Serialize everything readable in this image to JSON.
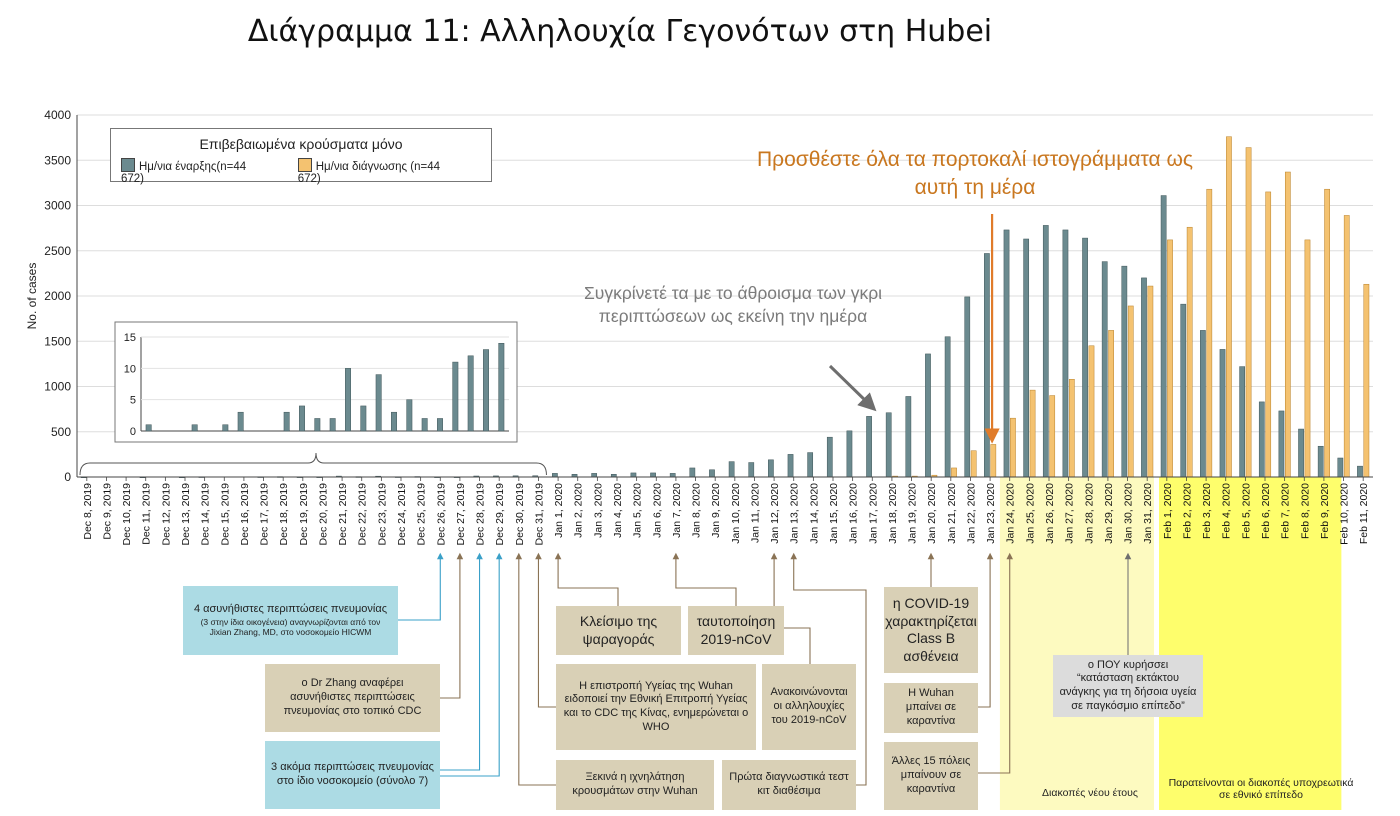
{
  "title": "Διάγραμμα 11: Αλληλουχία Γεγονότων στη Hubei",
  "legend": {
    "title": "Επιβεβαιωμένα κρούσματα μόνο",
    "series": [
      {
        "label": "Ημ/νια έναρξης(n=44 672)",
        "color": "#6b8a8f"
      },
      {
        "label": "Ημ/νια διάγνωσης (n=44 672)",
        "color": "#f4c270"
      }
    ]
  },
  "annotations": {
    "orange": "Προσθέστε όλα τα πορτοκαλί ιστογράμματα ως αυτή τη μέρα",
    "grey": "Συγκρίνετέ τα με το άθροισμα των γκρι περιπτώσεων ως εκείνη την ημέρα"
  },
  "events": {
    "e1_main": "4 ασυνήθιστες περιπτώσεις πνευμονίας",
    "e1_small": "(3 στην ίδια οικογένεια) αναγνωρίζονται από τον Jixian Zhang, MD, στο νοσοκομείο HICWM",
    "e2": "ο Dr Zhang αναφέρει ασυνήθιστες περιπτώσεις πνευμονίας στο τοπικό CDC",
    "e3": "3 ακόμα περιπτώσεις πνευμονίας στο ίδιο νοσοκομείο (σύνολο 7)",
    "e4": "Κλείσιμο της ψαραγοράς",
    "e5": "ταυτοποίηση 2019-nCoV",
    "e6": "Η επιστροπή Υγείας της Wuhan ειδοποιεί την Εθνική Επιτροπή Υγείας και το CDC της Κίνας, ενημερώνεται ο WHO",
    "e7": "Ανακοινώνονται οι αλληλουχίες του 2019-nCoV",
    "e8": "Ξεκινά η ιχνηλάτηση κρουσμάτων στην Wuhan",
    "e9": "Πρώτα διαγνωστικά τεστ κιτ διαθέσιμα",
    "e10": "η COVID-19 χαρακτηρίζεται Class B ασθένεια",
    "e11": "Η Wuhan μπαίνει σε καραντίνα",
    "e12": "Άλλες 15 πόλεις μπαίνουν σε καραντίνα",
    "e13": "ο ΠΟΥ κυρήσσει “κατάσταση εκτάκτου ανάγκης για τη δήσοια υγεία σε παγκόσμιο επίπεδο”",
    "band1": "Διακοπές νέου έτους",
    "band2": "Παρατείνονται οι διακοπές υποχρεωτικά σε εθνικό επίπεδο"
  },
  "chart_data": [
    {
      "type": "bar",
      "title": "",
      "xlabel": "",
      "ylabel": "No. of cases",
      "ylim": [
        0,
        4000
      ],
      "yticks": [
        0,
        500,
        1000,
        1500,
        2000,
        2500,
        3000,
        3500,
        4000
      ],
      "grid": true,
      "legend_position": "top-left",
      "categories": [
        "Dec 8, 2019",
        "Dec 9, 2019",
        "Dec 10, 2019",
        "Dec 11, 2019",
        "Dec 12, 2019",
        "Dec 13, 2019",
        "Dec 14, 2019",
        "Dec 15, 2019",
        "Dec 16, 2019",
        "Dec 17, 2019",
        "Dec 18, 2019",
        "Dec 19, 2019",
        "Dec 20, 2019",
        "Dec 21, 2019",
        "Dec 22, 2019",
        "Dec 23, 2019",
        "Dec 24, 2019",
        "Dec 25, 2019",
        "Dec 26, 2019",
        "Dec 27, 2019",
        "Dec 28, 2019",
        "Dec 29, 2019",
        "Dec 30, 2019",
        "Dec 31, 2019",
        "Jan 1, 2020",
        "Jan 2, 2020",
        "Jan 3, 2020",
        "Jan 4, 2020",
        "Jan 5, 2020",
        "Jan 6, 2020",
        "Jan 7, 2020",
        "Jan 8, 2020",
        "Jan 9, 2020",
        "Jan 10, 2020",
        "Jan 11, 2020",
        "Jan 12, 2020",
        "Jan 13, 2020",
        "Jan 14, 2020",
        "Jan 15, 2020",
        "Jan 16, 2020",
        "Jan 17, 2020",
        "Jan 18, 2020",
        "Jan 19, 2020",
        "Jan 20, 2020",
        "Jan 21, 2020",
        "Jan 22, 2020",
        "Jan 23, 2020",
        "Jan 24, 2020",
        "Jan 25, 2020",
        "Jan 26, 2020",
        "Jan 27, 2020",
        "Jan 28, 2020",
        "Jan 29, 2020",
        "Jan 30, 2020",
        "Jan 31, 2020",
        "Feb 1, 2020",
        "Feb 2, 2020",
        "Feb 3, 2020",
        "Feb 4, 2020",
        "Feb 5, 2020",
        "Feb 6, 2020",
        "Feb 7, 2020",
        "Feb 8, 2020",
        "Feb 9, 2020",
        "Feb 10, 2020",
        "Feb 11, 2020"
      ],
      "series": [
        {
          "name": "Ημ/νια έναρξης(n=44 672)",
          "values": [
            1,
            0,
            0,
            1,
            0,
            1,
            3,
            0,
            0,
            3,
            4,
            2,
            2,
            10,
            4,
            9,
            3,
            5,
            2,
            2,
            11,
            12,
            13,
            14,
            40,
            30,
            40,
            30,
            45,
            45,
            40,
            100,
            80,
            170,
            160,
            190,
            250,
            270,
            440,
            510,
            670,
            710,
            890,
            1360,
            1550,
            1990,
            2470,
            2730,
            2630,
            2780,
            2730,
            2640,
            2380,
            2330,
            2200,
            3110,
            1910,
            1620,
            1410,
            1220,
            830,
            730,
            530,
            340,
            210,
            120
          ]
        },
        {
          "name": "Ημ/νια διάγνωσης (n=44 672)",
          "values": [
            0,
            0,
            0,
            0,
            0,
            0,
            0,
            0,
            0,
            0,
            0,
            0,
            0,
            0,
            0,
            0,
            0,
            0,
            0,
            0,
            0,
            0,
            0,
            0,
            0,
            0,
            0,
            0,
            0,
            0,
            0,
            0,
            0,
            0,
            0,
            0,
            0,
            0,
            0,
            0,
            0,
            10,
            10,
            20,
            100,
            290,
            360,
            650,
            960,
            900,
            1080,
            1450,
            1620,
            1890,
            2110,
            2620,
            2760,
            3180,
            3760,
            3640,
            3150,
            3370,
            2620,
            3180,
            2890,
            2130
          ]
        }
      ]
    },
    {
      "type": "bar",
      "title": "",
      "ylim": [
        0,
        15
      ],
      "yticks": [
        0,
        5,
        10,
        15
      ],
      "categories": [
        "Dec 8, 2019",
        "Dec 9, 2019",
        "Dec 10, 2019",
        "Dec 11, 2019",
        "Dec 12, 2019",
        "Dec 13, 2019",
        "Dec 14, 2019",
        "Dec 15, 2019",
        "Dec 16, 2019",
        "Dec 17, 2019",
        "Dec 18, 2019",
        "Dec 19, 2019",
        "Dec 20, 2019",
        "Dec 21, 2019",
        "Dec 22, 2019",
        "Dec 23, 2019",
        "Dec 24, 2019",
        "Dec 25, 2019",
        "Dec 26, 2019",
        "Dec 27, 2019",
        "Dec 28, 2019",
        "Dec 29, 2019",
        "Dec 30, 2019",
        "Dec 31, 2019"
      ],
      "series": [
        {
          "name": "Ημ/νια έναρξης(n=44 672)",
          "values": [
            1,
            0,
            0,
            1,
            0,
            1,
            3,
            0,
            0,
            3,
            4,
            2,
            2,
            10,
            4,
            9,
            3,
            5,
            2,
            2,
            11,
            12,
            13,
            14
          ]
        }
      ]
    }
  ]
}
